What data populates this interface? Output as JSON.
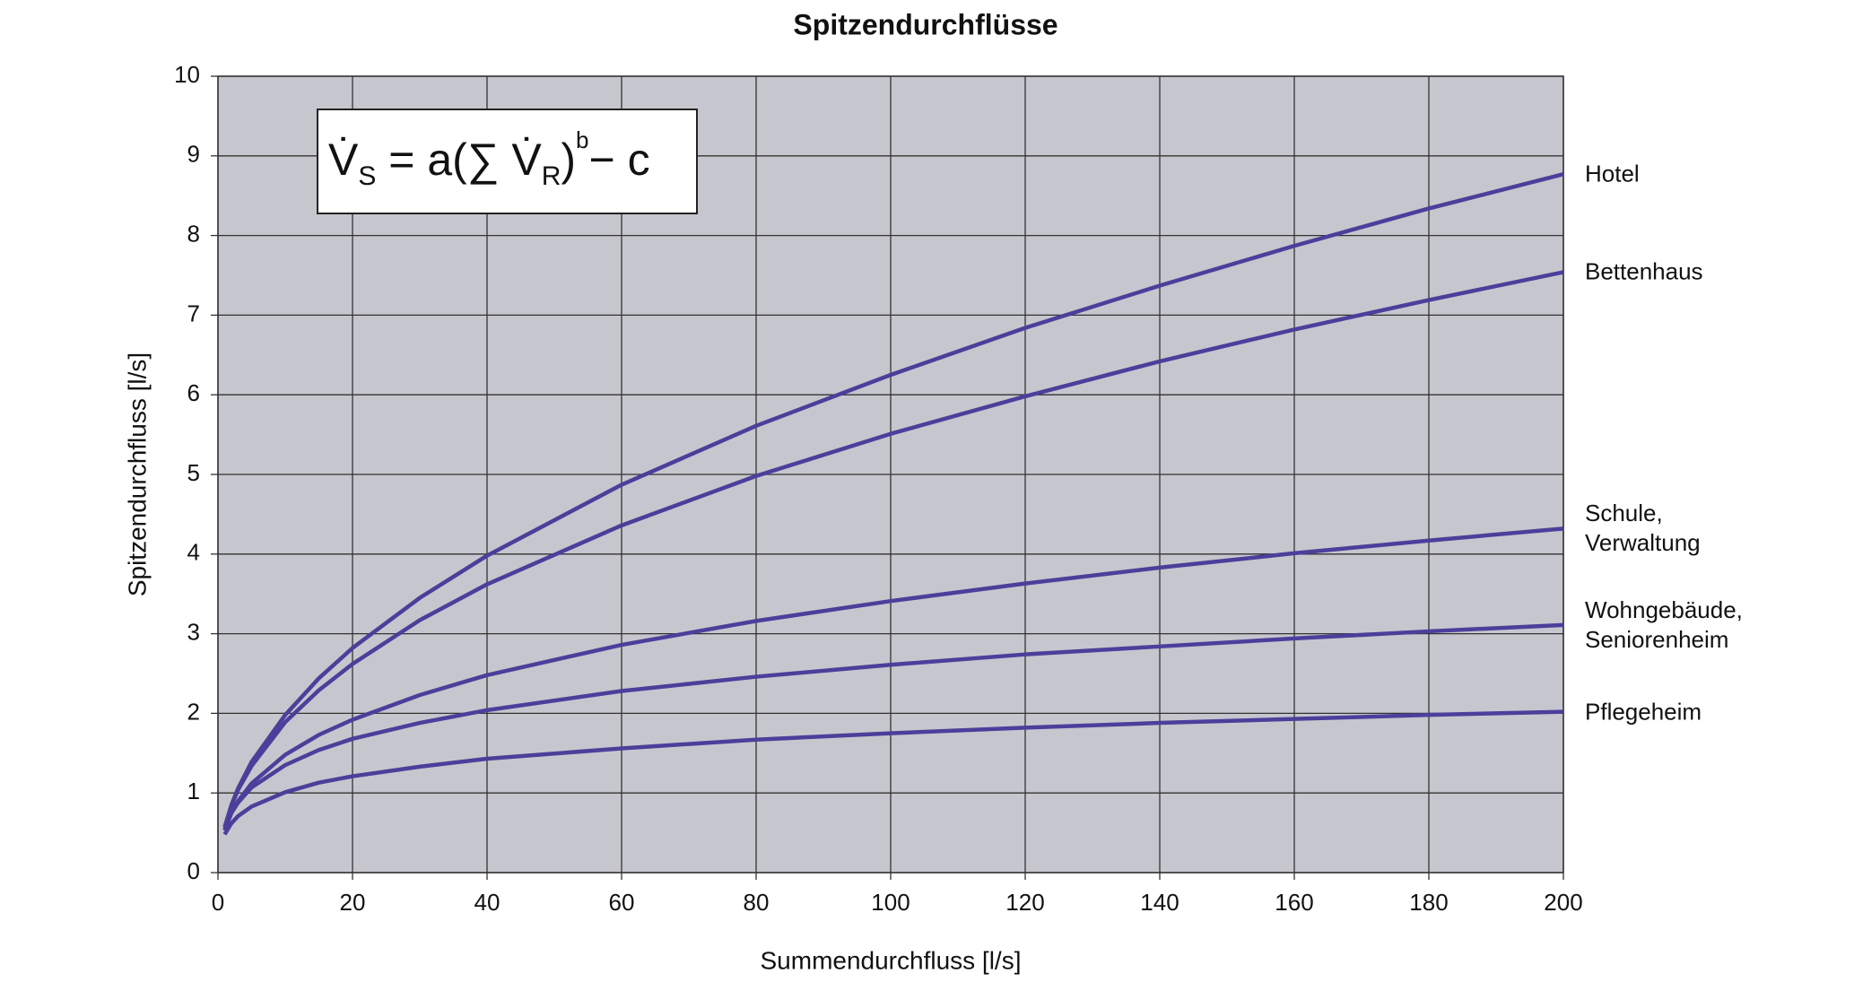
{
  "chart_data": {
    "type": "line",
    "title": "Spitzendurchflüsse",
    "xlabel": "Summendurchfluss [l/s]",
    "ylabel": "Spitzendurchfluss [l/s]",
    "formula": [
      "V̇",
      "S",
      " = a(∑ V̇",
      "R",
      ")",
      "b",
      "− c"
    ],
    "x": [
      1,
      2,
      3,
      5,
      10,
      15,
      20,
      30,
      40,
      60,
      80,
      100,
      120,
      140,
      160,
      180,
      200
    ],
    "xlim": [
      0,
      200
    ],
    "xticks": [
      0,
      20,
      40,
      60,
      80,
      100,
      120,
      140,
      160,
      180,
      200
    ],
    "ylim": [
      0,
      10
    ],
    "yticks": [
      0,
      1,
      2,
      3,
      4,
      5,
      6,
      7,
      8,
      9,
      10
    ],
    "grid": true,
    "series": [
      {
        "name": "Hotel",
        "color": "#4b3f9b",
        "values": [
          0.57,
          0.85,
          1.06,
          1.39,
          1.98,
          2.44,
          2.82,
          3.45,
          3.98,
          4.87,
          5.61,
          6.25,
          6.84,
          7.37,
          7.87,
          8.34,
          8.77
        ]
      },
      {
        "name": "Bettenhaus",
        "color": "#4b3f9b",
        "values": [
          0.57,
          0.84,
          1.04,
          1.34,
          1.89,
          2.29,
          2.62,
          3.17,
          3.62,
          4.36,
          4.98,
          5.51,
          5.98,
          6.42,
          6.82,
          7.19,
          7.54
        ]
      },
      {
        "name": "Schule, Verwaltung",
        "color": "#4b3f9b",
        "values": [
          0.53,
          0.75,
          0.9,
          1.12,
          1.48,
          1.73,
          1.92,
          2.23,
          2.48,
          2.86,
          3.16,
          3.41,
          3.63,
          3.83,
          4.01,
          4.17,
          4.32
        ]
      },
      {
        "name": "Wohngebäude, Seniorenheim",
        "color": "#4b3f9b",
        "values": [
          0.54,
          0.75,
          0.88,
          1.07,
          1.35,
          1.54,
          1.68,
          1.88,
          2.04,
          2.28,
          2.46,
          2.61,
          2.74,
          2.84,
          2.94,
          3.03,
          3.11
        ]
      },
      {
        "name": "Pflegeheim",
        "color": "#4b3f9b",
        "values": [
          0.48,
          0.62,
          0.71,
          0.83,
          1.01,
          1.13,
          1.21,
          1.33,
          1.43,
          1.56,
          1.67,
          1.75,
          1.82,
          1.88,
          1.93,
          1.98,
          2.02
        ]
      }
    ]
  }
}
